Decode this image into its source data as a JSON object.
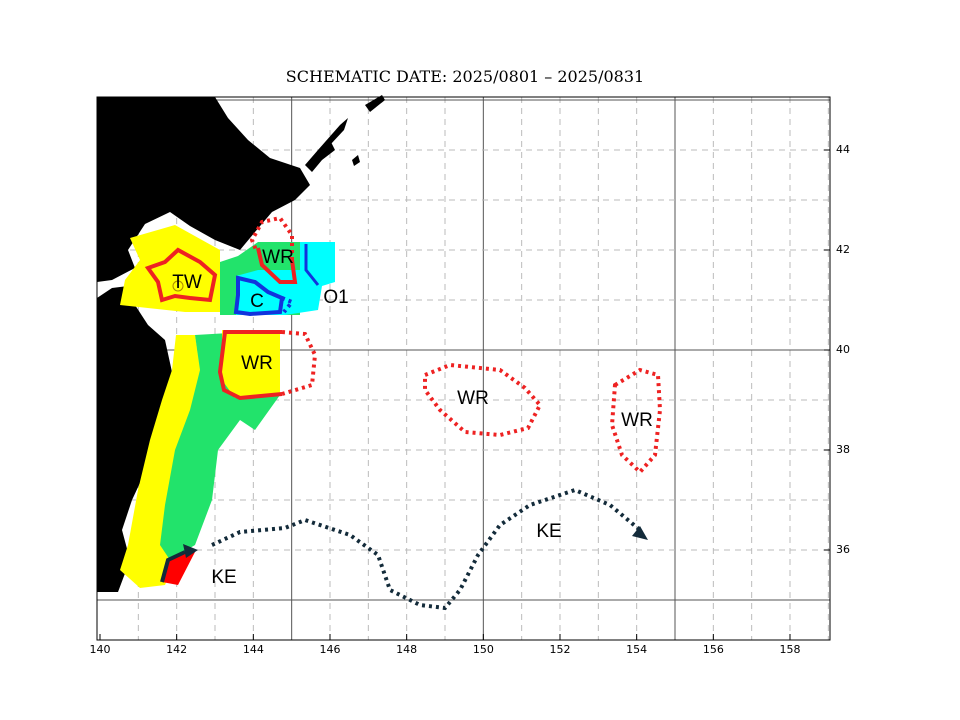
{
  "title": "SCHEMATIC  DATE:  2025/0801 –  2025/0831",
  "x_ticks": [
    140,
    142,
    144,
    146,
    148,
    150,
    152,
    154,
    156,
    158
  ],
  "y_ticks": [
    36,
    38,
    40,
    42,
    44
  ],
  "labels": [
    "TW",
    "WR",
    "C",
    "O1",
    "WR",
    "WR",
    "WR",
    "KE",
    "KE"
  ]
}
